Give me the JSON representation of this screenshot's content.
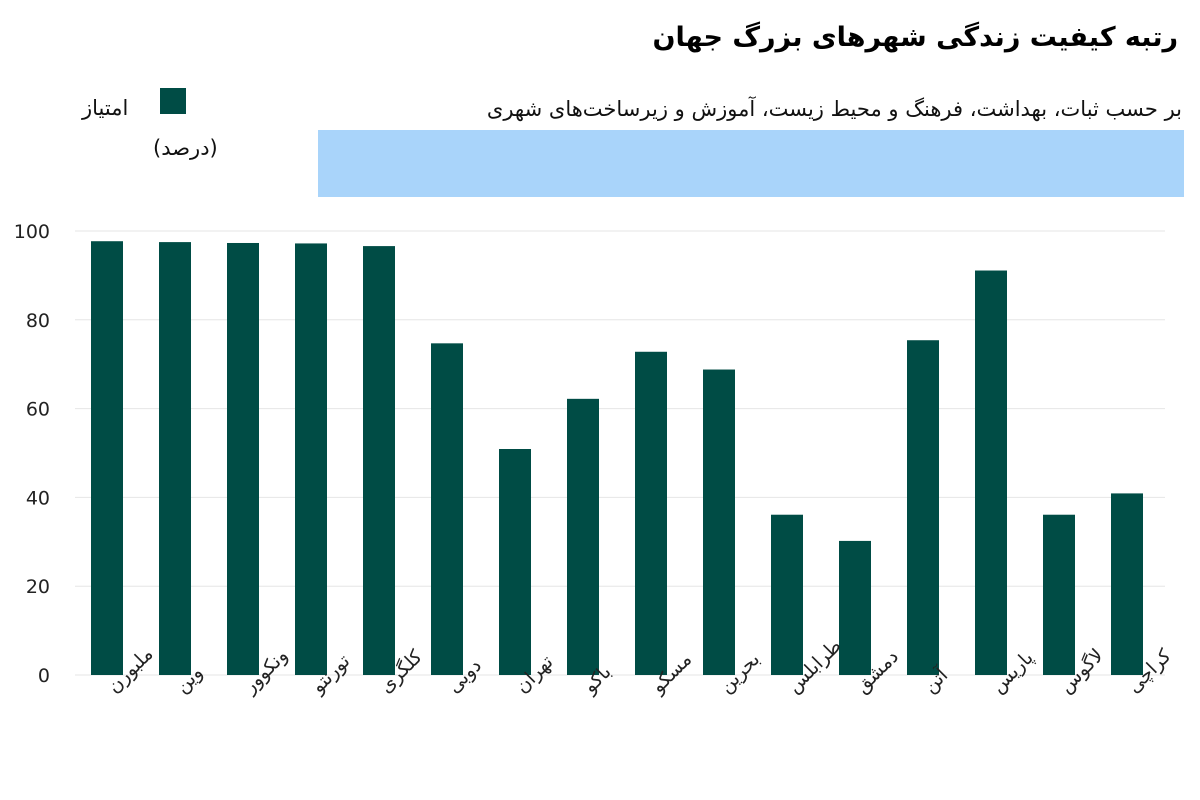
{
  "colors": {
    "bar": "#004c45",
    "highlight_band": "#a9d4fa",
    "grid": "#e6e6e6",
    "axis_text": "#222222"
  },
  "chart_data": {
    "type": "bar",
    "title": "رتبه کیفیت زندگی شهرهای بزرگ جهان",
    "subtitle": "بر حسب ثبات، بهداشت، فرهنگ و محیط زیست، آموزش و زیرساخت‌های شهری",
    "legend": {
      "label": "امتیاز",
      "unit": "(درصد)",
      "placement": "top-left"
    },
    "xlabel": "",
    "ylabel": "",
    "ylim": [
      0,
      100
    ],
    "yticks": [
      0,
      20,
      40,
      60,
      80,
      100
    ],
    "grid": true,
    "categories": [
      "ملبورن",
      "وین",
      "ونکوور",
      "تورنتو",
      "کلگری",
      "دوبی",
      "تهران",
      "باکو",
      "مسکو",
      "بحرین",
      "طرابلس",
      "دمشق",
      "آتن",
      "پاریس",
      "لاگوس",
      "کراچی"
    ],
    "values": [
      97.7,
      97.5,
      97.3,
      97.2,
      96.6,
      74.7,
      50.9,
      62.2,
      72.8,
      68.8,
      36.1,
      30.2,
      75.4,
      91.1,
      36.1,
      40.9
    ]
  }
}
